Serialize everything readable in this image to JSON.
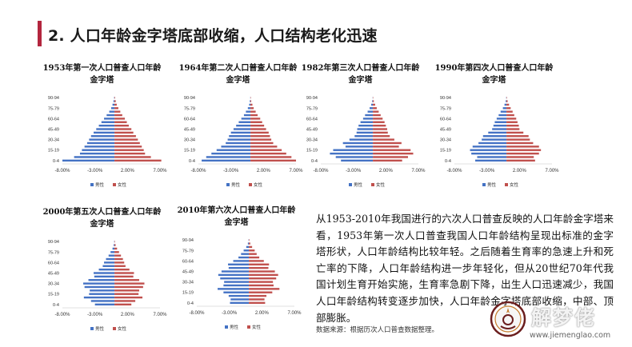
{
  "slide": {
    "heading": "2. 人口年龄金字塔底部收缩，人口结构老化迅速",
    "accent_color": "#b3263e",
    "caption": "从1953-2010年我国进行的六次人口普查反映的人口年龄金字塔来看，1953年第一次人口普查我国人口年龄结构呈现出标准的金字塔形状，人口年龄结构比较年轻。之后随着生育率的急速上升和死亡率的下降，人口年龄结构进一步年轻化，但从20世纪70年代我国计划生育开始实施，生育率急剧下降，出生人口迅速减少，我国人口年龄结构转变逐步加快，人口年龄金字塔底部收缩，中部、顶部膨胀。",
    "source": "数据来源：根据历次人口普查数据整理。"
  },
  "watermark": {
    "name": "解梦佬",
    "url": "www.jiemenglao.com"
  },
  "colors": {
    "male": "#4472c4",
    "female": "#c0504d",
    "axis": "#d9d9d9"
  },
  "chart_data": [
    {
      "type": "bar",
      "orientation": "horizontal-diverging",
      "title": "1953年第一次人口普查人口年龄金字塔",
      "categories": [
        "0-4",
        "5-9",
        "10-14",
        "15-19",
        "20-24",
        "25-29",
        "30-34",
        "35-39",
        "40-44",
        "45-49",
        "50-54",
        "55-59",
        "60-64",
        "65-69",
        "70-74",
        "75-79",
        "80-84",
        "85-89",
        "90-94"
      ],
      "category_labels_shown": [
        "0-4",
        "15-19",
        "30-34",
        "45-49",
        "60-64",
        "75-79",
        "90-94"
      ],
      "xticks": [
        "-8.00%",
        "-3.00%",
        "2.00%",
        "7.00%"
      ],
      "xlim": [
        -8,
        7
      ],
      "series": [
        {
          "name": "男性",
          "values": [
            -8.0,
            -6.2,
            -5.3,
            -5.0,
            -4.6,
            -4.2,
            -3.9,
            -3.6,
            -3.2,
            -2.8,
            -2.4,
            -2.0,
            -1.6,
            -1.2,
            -0.8,
            -0.5,
            -0.3,
            -0.15,
            -0.05
          ]
        },
        {
          "name": "女性",
          "values": [
            7.2,
            5.6,
            4.7,
            4.5,
            4.2,
            3.9,
            3.6,
            3.3,
            2.9,
            2.6,
            2.2,
            1.9,
            1.6,
            1.2,
            0.9,
            0.6,
            0.35,
            0.2,
            0.08
          ]
        }
      ]
    },
    {
      "type": "bar",
      "orientation": "horizontal-diverging",
      "title": "1964年第二次人口普查人口年龄金字塔",
      "categories": [
        "0-4",
        "5-9",
        "10-14",
        "15-19",
        "20-24",
        "25-29",
        "30-34",
        "35-39",
        "40-44",
        "45-49",
        "50-54",
        "55-59",
        "60-64",
        "65-69",
        "70-74",
        "75-79",
        "80-84",
        "85-89",
        "90-94"
      ],
      "category_labels_shown": [
        "0-4",
        "15-19",
        "30-34",
        "45-49",
        "60-64",
        "75-79",
        "90-94"
      ],
      "xticks": [
        "-8.00%",
        "-3.00%",
        "2.00%",
        "7.00%"
      ],
      "xlim": [
        -8,
        7
      ],
      "series": [
        {
          "name": "男性",
          "values": [
            -7.5,
            -6.8,
            -6.0,
            -5.2,
            -4.5,
            -3.8,
            -3.5,
            -3.3,
            -3.0,
            -2.6,
            -2.2,
            -1.8,
            -1.4,
            -1.0,
            -0.7,
            -0.4,
            -0.2,
            -0.1,
            -0.03
          ]
        },
        {
          "name": "女性",
          "values": [
            7.0,
            6.3,
            5.5,
            4.8,
            4.1,
            3.5,
            3.2,
            3.0,
            2.8,
            2.4,
            2.1,
            1.8,
            1.5,
            1.1,
            0.8,
            0.5,
            0.3,
            0.12,
            0.05
          ]
        }
      ]
    },
    {
      "type": "bar",
      "orientation": "horizontal-diverging",
      "title": "1982年第三次人口普查人口年龄金字塔",
      "categories": [
        "0-4",
        "5-9",
        "10-14",
        "15-19",
        "20-24",
        "25-29",
        "30-34",
        "35-39",
        "40-44",
        "45-49",
        "50-54",
        "55-59",
        "60-64",
        "65-69",
        "70-74",
        "75-79",
        "80-84",
        "85-89",
        "90-94"
      ],
      "category_labels_shown": [
        "0-4",
        "15-19",
        "30-34",
        "45-49",
        "60-64",
        "75-79",
        "90-94"
      ],
      "xticks": [
        "-8.00%",
        "-3.00%",
        "2.00%",
        "7.00%"
      ],
      "xlim": [
        -8,
        7
      ],
      "series": [
        {
          "name": "男性",
          "values": [
            -4.9,
            -5.7,
            -6.6,
            -6.1,
            -4.2,
            -4.6,
            -3.6,
            -2.8,
            -2.5,
            -2.4,
            -2.2,
            -1.9,
            -1.5,
            -1.2,
            -0.8,
            -0.5,
            -0.25,
            -0.1,
            -0.03
          ]
        },
        {
          "name": "女性",
          "values": [
            4.5,
            5.4,
            6.2,
            5.8,
            4.0,
            4.4,
            3.3,
            2.6,
            2.3,
            2.2,
            2.0,
            1.8,
            1.5,
            1.2,
            0.9,
            0.6,
            0.35,
            0.15,
            0.05
          ]
        }
      ]
    },
    {
      "type": "bar",
      "orientation": "horizontal-diverging",
      "title": "1990年第四次人口普查人口年龄金字塔",
      "categories": [
        "0-4",
        "5-9",
        "10-14",
        "15-19",
        "20-24",
        "25-29",
        "30-34",
        "35-39",
        "40-44",
        "45-49",
        "50-54",
        "55-59",
        "60-64",
        "65-69",
        "70-74",
        "75-79",
        "80-84",
        "85-89",
        "90-94"
      ],
      "category_labels_shown": [
        "0-4",
        "15-19",
        "30-34",
        "45-49",
        "60-64",
        "75-79",
        "90-94"
      ],
      "xticks": [
        "-8.00%",
        "-3.00%",
        "2.00%",
        "7.00%"
      ],
      "xlim": [
        -8,
        7
      ],
      "series": [
        {
          "name": "男性",
          "values": [
            -4.8,
            -4.5,
            -5.4,
            -5.6,
            -5.2,
            -4.3,
            -3.8,
            -3.6,
            -2.8,
            -2.2,
            -2.0,
            -1.8,
            -1.5,
            -1.2,
            -0.9,
            -0.55,
            -0.3,
            -0.12,
            -0.04
          ]
        },
        {
          "name": "女性",
          "values": [
            4.4,
            4.2,
            5.0,
            5.3,
            5.0,
            4.1,
            3.6,
            3.4,
            2.6,
            2.0,
            1.9,
            1.7,
            1.5,
            1.2,
            0.95,
            0.65,
            0.4,
            0.18,
            0.06
          ]
        }
      ]
    },
    {
      "type": "bar",
      "orientation": "horizontal-diverging",
      "title": "2000年第五次人口普查人口年龄金字塔",
      "categories": [
        "0-4",
        "5-9",
        "10-14",
        "15-19",
        "20-24",
        "25-29",
        "30-34",
        "35-39",
        "40-44",
        "45-49",
        "50-54",
        "55-59",
        "60-64",
        "65-69",
        "70-74",
        "75-79",
        "80-84",
        "85-89",
        "90-94"
      ],
      "category_labels_shown": [
        "0-4",
        "15-19",
        "30-34",
        "45-49",
        "60-64",
        "75-79",
        "90-94"
      ],
      "xticks": [
        "-8.00%",
        "-3.00%",
        "2.00%",
        "7.00%"
      ],
      "xlim": [
        -8,
        7
      ],
      "series": [
        {
          "name": "男性",
          "values": [
            -3.0,
            -3.6,
            -4.7,
            -3.9,
            -3.8,
            -4.6,
            -4.8,
            -4.0,
            -3.1,
            -3.2,
            -2.4,
            -1.8,
            -1.6,
            -1.3,
            -0.9,
            -0.6,
            -0.3,
            -0.12,
            -0.04
          ]
        },
        {
          "name": "女性",
          "values": [
            2.6,
            3.2,
            4.3,
            3.7,
            3.8,
            4.4,
            4.6,
            3.8,
            2.9,
            3.0,
            2.3,
            1.7,
            1.5,
            1.3,
            1.0,
            0.7,
            0.4,
            0.18,
            0.06
          ]
        }
      ]
    },
    {
      "type": "bar",
      "orientation": "horizontal-diverging",
      "title": "2010年第六次人口普查人口年龄金字塔",
      "categories": [
        "0-4",
        "5-9",
        "10-14",
        "15-19",
        "20-24",
        "25-29",
        "30-34",
        "35-39",
        "40-44",
        "45-49",
        "50-54",
        "55-59",
        "60-64",
        "65-69",
        "70-74",
        "75-79",
        "80-84",
        "85-89",
        "90-94"
      ],
      "category_labels_shown": [
        "0-4",
        "15-19",
        "30-34",
        "45-49",
        "60-64",
        "75-79",
        "90-94"
      ],
      "xticks": [
        "-8.00%",
        "-3.00%",
        "2.00%",
        "7.00%"
      ],
      "xlim": [
        -8,
        7
      ],
      "series": [
        {
          "name": "男性",
          "values": [
            -2.9,
            -2.8,
            -3.1,
            -3.9,
            -4.8,
            -3.9,
            -3.8,
            -4.4,
            -4.7,
            -4.2,
            -3.1,
            -3.2,
            -2.4,
            -1.6,
            -1.2,
            -0.8,
            -0.4,
            -0.15,
            -0.04
          ]
        },
        {
          "name": "女性",
          "values": [
            2.5,
            2.4,
            2.7,
            3.6,
            4.7,
            3.8,
            3.7,
            4.2,
            4.5,
            4.0,
            3.0,
            3.1,
            2.3,
            1.6,
            1.2,
            0.9,
            0.5,
            0.22,
            0.07
          ]
        }
      ]
    }
  ]
}
